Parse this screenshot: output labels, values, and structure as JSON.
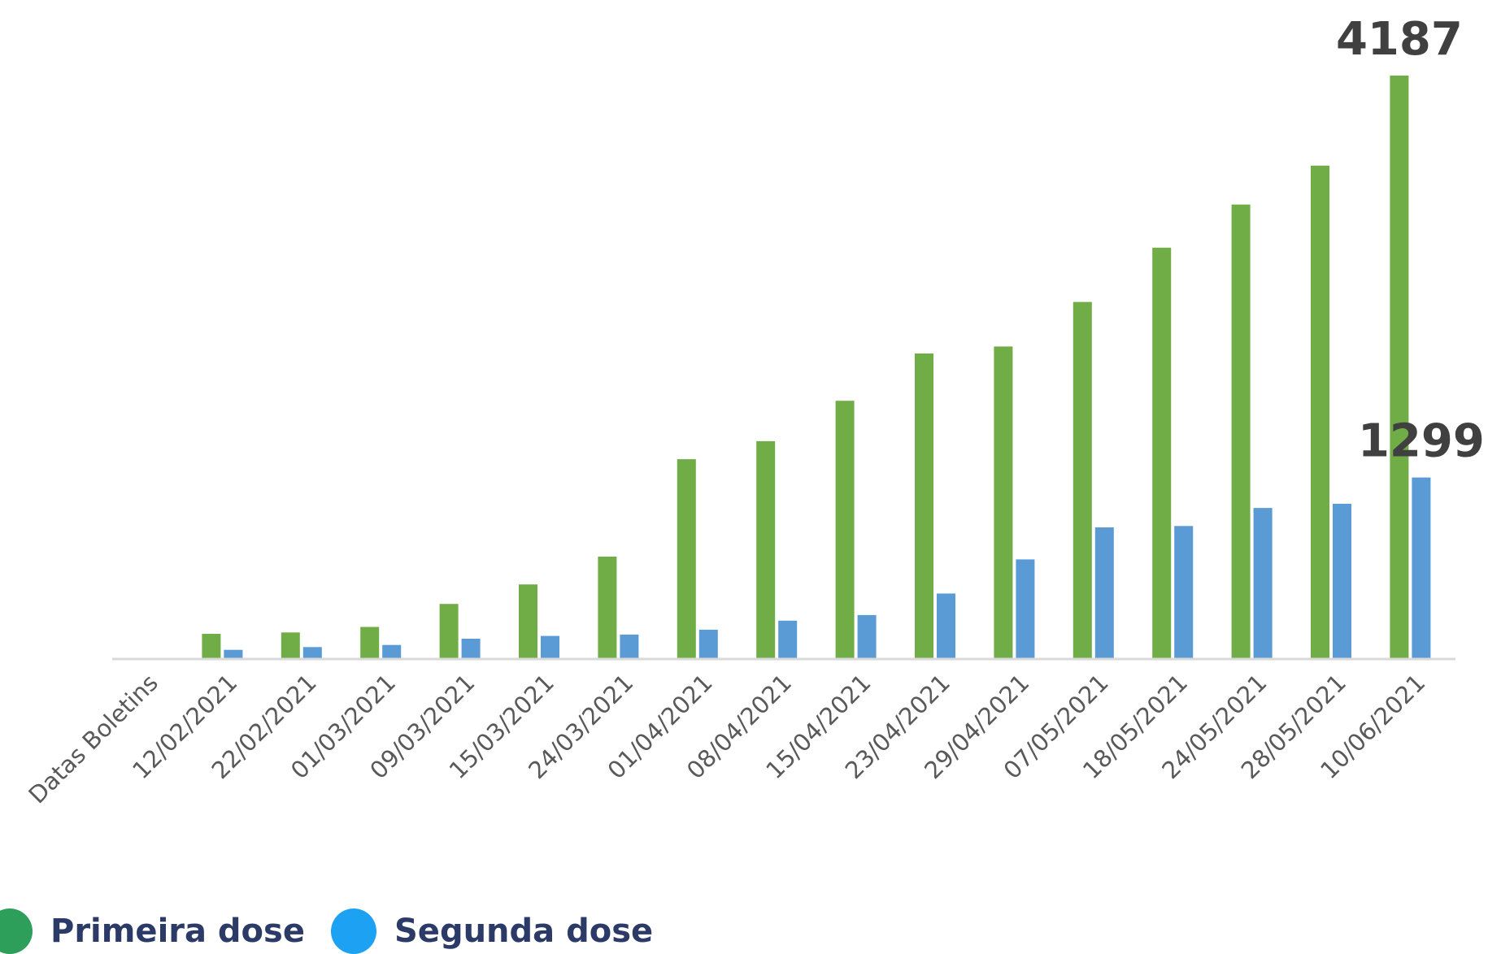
{
  "chart_data": {
    "type": "bar",
    "categories": [
      "Datas Boletins",
      "12/02/2021",
      "22/02/2021",
      "01/03/2021",
      "09/03/2021",
      "15/03/2021",
      "24/03/2021",
      "01/04/2021",
      "08/04/2021",
      "15/04/2021",
      "23/04/2021",
      "29/04/2021",
      "07/05/2021",
      "18/05/2021",
      "24/05/2021",
      "28/05/2021",
      "10/06/2021"
    ],
    "series": [
      {
        "name": "Primeira dose",
        "color": "#70ad47",
        "values": [
          null,
          175,
          185,
          225,
          390,
          530,
          730,
          1430,
          1560,
          1850,
          2190,
          2240,
          2560,
          2950,
          3260,
          3540,
          4187
        ]
      },
      {
        "name": "Segunda dose",
        "color": "#5b9bd5",
        "values": [
          null,
          60,
          80,
          95,
          140,
          160,
          170,
          205,
          270,
          310,
          465,
          710,
          940,
          950,
          1080,
          1110,
          1299
        ]
      }
    ],
    "data_labels": [
      {
        "series": "Primeira dose",
        "category": "10/06/2021",
        "text": "4187"
      },
      {
        "series": "Segunda dose",
        "category": "10/06/2021",
        "text": "1299"
      }
    ],
    "ylim": [
      0,
      4187
    ],
    "grid": false,
    "legend_placement": "bottom-left",
    "axis_color": "#d9d9d9"
  },
  "legend": {
    "items": [
      {
        "label": "Primeira dose",
        "color": "#2e9e5b"
      },
      {
        "label": "Segunda dose",
        "color": "#1da1f2"
      }
    ]
  }
}
